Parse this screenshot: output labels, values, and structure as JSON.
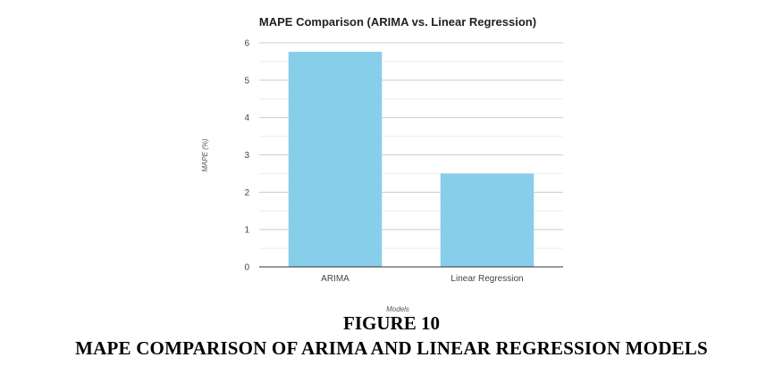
{
  "figure": {
    "number_label": "FIGURE 10",
    "caption": "MAPE COMPARISON OF ARIMA AND LINEAR REGRESSION MODELS"
  },
  "chart_data": {
    "type": "bar",
    "title": "MAPE Comparison (ARIMA vs. Linear Regression)",
    "xlabel": "Models",
    "ylabel": "MAPE (%)",
    "categories": [
      "ARIMA",
      "Linear Regression"
    ],
    "values": [
      5.76,
      2.5
    ],
    "ylim": [
      0,
      6
    ],
    "yticks": [
      0,
      1,
      2,
      3,
      4,
      5,
      6
    ],
    "grid": true,
    "legend": "none",
    "bar_color": "#87CEEB",
    "grid_color": "#cccccc",
    "minor_grid_color": "#eeeeee",
    "axis_color": "#333333"
  }
}
